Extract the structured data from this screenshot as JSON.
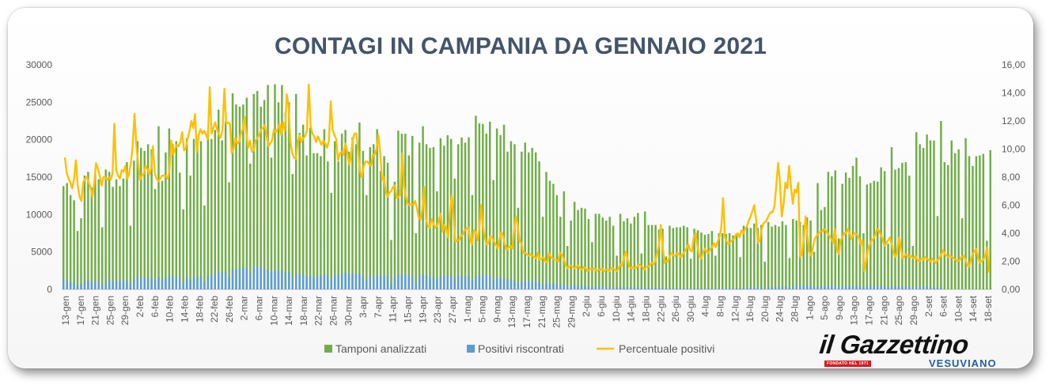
{
  "chart_data": {
    "type": "bar+line",
    "title": "CONTAGI IN CAMPANIA DA GENNAIO 2021",
    "y_left": {
      "min": 0,
      "max": 30000,
      "ticks": [
        "0",
        "5000",
        "10000",
        "15000",
        "20000",
        "25000",
        "30000"
      ]
    },
    "y_right": {
      "min": 0,
      "max": 16,
      "ticks": [
        "0,00",
        "2,00",
        "4,00",
        "6,00",
        "8,00",
        "10,00",
        "12,00",
        "14,00",
        "16,00"
      ]
    },
    "x_tick_labels": [
      "13-gen",
      "17-gen",
      "21-gen",
      "25-gen",
      "29-gen",
      "2-feb",
      "6-feb",
      "10-feb",
      "14-feb",
      "18-feb",
      "22-feb",
      "26-feb",
      "2-mar",
      "6-mar",
      "10-mar",
      "14-mar",
      "18-mar",
      "22-mar",
      "26-mar",
      "30-mar",
      "3-apr",
      "7-apr",
      "11-apr",
      "15-apr",
      "19-apr",
      "23-apr",
      "27-apr",
      "1-mag",
      "5-mag",
      "9-mag",
      "13-mag",
      "17-mag",
      "21-mag",
      "25-mag",
      "29-mag",
      "2-giu",
      "6-giu",
      "10-giu",
      "14-giu",
      "18-giu",
      "22-giu",
      "26-giu",
      "30-giu",
      "4-lug",
      "8-lug",
      "12-lug",
      "16-lug",
      "20-lug",
      "24-lug",
      "28-lug",
      "1-ago",
      "5-ago",
      "9-ago",
      "13-ago",
      "17-ago",
      "21-ago",
      "25-ago",
      "29-ago",
      "2-set",
      "6-set",
      "10-set",
      "14-set",
      "18-set"
    ],
    "legend": [
      "Tamponi analizzati",
      "Positivi riscontrati",
      "Percentuale positivi"
    ],
    "legend_position": "bottom",
    "colors": {
      "tamponi": "#70ad47",
      "positivi": "#5b9bd5",
      "percentuale": "#ffc000"
    },
    "series": [
      {
        "name": "Tamponi analizzati",
        "axis": "left",
        "type": "bar",
        "values": [
          13800,
          14200,
          12600,
          11900,
          7800,
          9500,
          15200,
          15700,
          13600,
          15400,
          14700,
          8300,
          16000,
          15700,
          13700,
          14700,
          13800,
          14800,
          17000,
          8500,
          17200,
          19800,
          18900,
          18500,
          19400,
          18700,
          13400,
          21800,
          14500,
          18300,
          21500,
          19400,
          19800,
          15600,
          10700,
          20200,
          15200,
          20100,
          19700,
          19800,
          11200,
          21200,
          20100,
          21300,
          24000,
          19900,
          22400,
          14300,
          26200,
          24700,
          24400,
          24700,
          25600,
          16800,
          26100,
          26500,
          24400,
          25300,
          27300,
          17600,
          27400,
          25000,
          27300,
          23600,
          25000,
          15400,
          26100,
          20900,
          22000,
          17900,
          21600,
          18200,
          18200,
          17800,
          21400,
          17100,
          12900,
          19800,
          17100,
          20800,
          21300,
          18400,
          20300,
          19400,
          22300,
          18500,
          12600,
          19000,
          19400,
          21400,
          15800,
          17800,
          16900,
          6600,
          14400,
          21200,
          20800,
          20800,
          17900,
          20500,
          7500,
          19600,
          21800,
          19400,
          18900,
          19000,
          13100,
          20200,
          19200,
          20600,
          20100,
          14800,
          19400,
          20300,
          19600,
          20300,
          12600,
          23200,
          22200,
          22100,
          20800,
          22400,
          14600,
          21500,
          20600,
          22000,
          18400,
          19800,
          19400,
          10900,
          18400,
          19600,
          18300,
          18900,
          18300,
          17100,
          9700,
          15700,
          14500,
          14100,
          12600,
          9700,
          13100,
          5800,
          9200,
          11700,
          10600,
          10900,
          10800,
          9400,
          6300,
          10100,
          10100,
          9600,
          9200,
          9700,
          8500,
          4500,
          10100,
          9100,
          9500,
          8800,
          9700,
          10200,
          4800,
          10400,
          8600,
          8600,
          8600,
          8000,
          8100,
          4400,
          8500,
          8200,
          8300,
          8300,
          8500,
          8300,
          4100,
          8100,
          7900,
          7600,
          7300,
          7400,
          7800,
          4500,
          7500,
          7500,
          7400,
          7500,
          7200,
          7400,
          4300,
          8500,
          8300,
          8200,
          8800,
          8200,
          8600,
          3700,
          9000,
          8400,
          8600,
          8400,
          9100,
          8600,
          4200,
          9400,
          9200,
          9000,
          8600,
          9600,
          9200,
          5000,
          14200,
          10600,
          11000,
          15700,
          15100,
          15900,
          6800,
          14100,
          15600,
          14900,
          16500,
          17600,
          15100,
          7500,
          14000,
          14200,
          14500,
          14400,
          16300,
          15800,
          6100,
          19000,
          16000,
          16200,
          16900,
          17000,
          15200,
          5800,
          21000,
          19400,
          18900,
          20700,
          19900,
          19900,
          9800,
          22500,
          17000,
          16600,
          19900,
          18200,
          18700,
          9500,
          20200,
          17800,
          16500,
          17800,
          17900,
          18100,
          6500,
          18600
        ]
      },
      {
        "name": "Positivi riscontrati",
        "axis": "left",
        "type": "bar",
        "values": [
          1300,
          1200,
          1000,
          900,
          600,
          700,
          1100,
          1200,
          1000,
          1100,
          1000,
          600,
          1000,
          1200,
          1100,
          1200,
          1100,
          1200,
          1300,
          700,
          1400,
          1600,
          1600,
          1500,
          1600,
          1500,
          1200,
          1700,
          1300,
          1600,
          1800,
          1600,
          1700,
          1300,
          900,
          1600,
          1300,
          1600,
          1600,
          1700,
          1000,
          1800,
          1900,
          2100,
          2400,
          2300,
          2300,
          1600,
          2600,
          2700,
          2800,
          2800,
          2900,
          2100,
          3000,
          3000,
          2900,
          2700,
          2600,
          2300,
          2500,
          2400,
          2500,
          2200,
          2300,
          1500,
          2200,
          1900,
          2000,
          1700,
          1900,
          1600,
          1700,
          1800,
          2000,
          1800,
          1400,
          1900,
          1900,
          2200,
          2200,
          2100,
          2100,
          2000,
          2100,
          1800,
          1300,
          1800,
          1700,
          1900,
          1800,
          1800,
          1900,
          800,
          1600,
          2000,
          2000,
          1900,
          1900,
          1800,
          900,
          1800,
          2000,
          1800,
          1700,
          1700,
          1400,
          1700,
          1800,
          1800,
          1800,
          1500,
          1800,
          1800,
          1700,
          1800,
          1200,
          1700,
          1800,
          1900,
          1900,
          1900,
          1300,
          1600,
          1500,
          1500,
          1300,
          1300,
          1200,
          800,
          1100,
          1200,
          1100,
          1100,
          1100,
          1000,
          600,
          900,
          800,
          800,
          700,
          600,
          700,
          400,
          500,
          600,
          500,
          500,
          500,
          400,
          300,
          400,
          400,
          350,
          300,
          330,
          300,
          200,
          350,
          300,
          300,
          280,
          280,
          300,
          150,
          250,
          250,
          230,
          200,
          180,
          190,
          120,
          170,
          160,
          150,
          150,
          150,
          140,
          80,
          130,
          140,
          120,
          120,
          130,
          120,
          90,
          130,
          140,
          150,
          150,
          160,
          170,
          90,
          230,
          230,
          240,
          260,
          260,
          270,
          140,
          320,
          330,
          340,
          350,
          380,
          400,
          250,
          480,
          500,
          500,
          480,
          520,
          480,
          350,
          400,
          420,
          430,
          450,
          480,
          450,
          300,
          430,
          440,
          420,
          430,
          450,
          440,
          270,
          460,
          450,
          460,
          470,
          440,
          430,
          260,
          420,
          410,
          400,
          410,
          400,
          380,
          260,
          380,
          370,
          360,
          370,
          350,
          340,
          200,
          330
        ]
      },
      {
        "name": "Percentuale positivi",
        "axis": "right",
        "type": "line",
        "values": [
          9.4,
          8.3,
          7.9,
          7.6,
          7.2,
          7.9,
          9.2,
          7.4,
          6.6,
          6.3,
          7.6,
          7.9,
          8.0,
          7.6,
          7.3,
          6.6,
          7.5,
          9.0,
          8.6,
          8.1,
          7.4,
          8.0,
          8.0,
          7.8,
          8.0,
          7.8,
          8.3,
          11.8,
          8.5,
          8.1,
          7.9,
          8.5,
          8.4,
          8.8,
          7.9,
          8.2,
          9.0,
          10.3,
          12.5,
          10.2,
          9.0,
          7.8,
          8.1,
          8.2,
          8.8,
          8.6,
          8.2,
          8.6,
          10.2,
          8.3,
          7.9,
          7.7,
          7.9,
          8.1,
          8.1,
          8.1,
          7.9,
          8.4,
          10.6,
          9.6,
          10.0,
          10.3,
          10.2,
          10.5,
          11.2,
          9.9,
          10.1,
          10.8,
          11.3,
          12.0,
          11.5,
          12.5,
          9.8,
          11.0,
          11.4,
          11.1,
          11.3,
          11.0,
          10.7,
          14.4,
          11.1,
          11.5,
          11.9,
          11.4,
          11.0,
          10.8,
          11.4,
          14.3,
          11.8,
          11.9,
          11.8,
          9.7,
          10.0,
          10.8,
          10.4,
          10.5,
          11.1,
          11.4,
          12.3,
          11.1,
          10.1,
          10.6,
          9.8,
          9.9,
          10.6,
          10.8,
          11.0,
          11.4,
          11.5,
          11.7,
          11.0,
          10.2,
          10.4,
          10.6,
          11.4,
          11.2,
          11.4,
          11.8,
          11.0,
          11.9,
          11.3,
          13.9,
          13.0,
          10.5,
          9.7,
          9.4,
          9.3,
          10.5,
          11.0,
          10.5,
          10.8,
          10.9,
          11.3,
          14.6,
          11.7,
          11.1,
          10.9,
          10.5,
          10.9,
          10.6,
          10.3,
          10.6,
          10.4,
          10.1,
          10.6,
          13.4,
          11.4,
          11.0,
          10.7,
          9.2,
          9.7,
          9.8,
          9.6,
          10.4,
          9.8,
          8.9,
          9.4,
          10.7,
          11.1,
          11.1,
          9.8,
          8.4,
          8.0,
          8.8,
          9.1,
          9.1,
          8.9,
          8.8,
          9.6,
          9.6,
          10.0,
          11.0,
          9.7,
          7.8,
          8.0,
          7.0,
          6.6,
          6.9,
          7.0,
          7.3,
          7.4,
          6.5,
          6.6,
          6.8,
          9.7,
          7.4,
          6.6,
          6.1,
          6.0,
          6.1,
          6.0,
          6.3,
          5.8,
          5.1,
          5.0,
          5.7,
          7.3,
          5.0,
          4.5,
          4.4,
          5.0,
          4.7,
          4.4,
          4.5,
          4.9,
          5.4,
          4.1,
          4.6,
          4.3,
          3.7,
          5.4,
          6.7,
          5.2,
          3.4,
          3.5,
          3.5,
          3.8,
          3.9,
          4.2,
          4.3,
          4.4,
          3.6,
          3.2,
          4.2,
          4.1,
          3.5,
          4.3,
          6.0,
          4.5,
          3.7,
          3.2,
          3.3,
          3.8,
          3.7,
          3.4,
          3.2,
          2.9,
          3.5,
          4.1,
          3.8,
          3.2,
          2.8,
          3.0,
          3.1,
          2.9,
          4.2,
          5.2,
          4.6,
          3.4,
          3.3,
          2.6,
          2.6,
          2.5,
          2.4,
          2.5,
          2.4,
          2.3,
          2.2,
          2.6,
          2.1,
          2.2,
          2.3,
          2.0,
          1.9,
          2.6,
          2.3,
          2.2,
          2.1,
          2.1,
          2.0,
          2.6,
          2.5,
          2.2,
          1.8,
          1.5,
          1.6,
          1.7,
          1.6,
          1.5,
          1.6,
          1.7,
          1.5,
          1.4,
          1.6,
          1.5,
          1.3,
          1.4,
          1.5,
          1.4,
          1.5,
          1.3,
          1.4,
          1.4,
          1.5,
          1.3,
          1.4,
          1.4,
          1.3,
          1.5,
          1.5,
          1.4,
          1.3,
          1.5,
          1.8,
          1.7,
          2.3,
          2.7,
          2.1,
          1.6,
          1.5,
          1.6,
          1.5,
          1.6,
          1.8,
          1.7,
          1.6,
          1.4,
          1.6,
          1.6,
          1.7,
          1.9,
          1.8,
          2.0,
          2.6,
          3.1,
          4.6,
          3.1,
          1.9,
          2.0,
          2.0,
          2.4,
          2.6,
          2.4,
          2.4,
          2.6,
          2.5,
          2.3,
          2.5,
          2.7,
          2.9,
          3.2,
          2.8,
          2.7,
          3.7,
          4.0,
          3.1,
          2.4,
          2.2,
          2.6,
          2.9,
          2.7,
          2.6,
          2.9,
          3.0,
          3.3,
          3.0,
          3.4,
          3.7,
          4.4,
          6.5,
          3.7,
          3.4,
          3.2,
          3.4,
          3.5,
          3.6,
          3.9,
          4.0,
          3.7,
          4.2,
          4.0,
          4.3,
          4.5,
          4.9,
          5.2,
          5.6,
          6.0,
          5.0,
          3.3,
          3.5,
          4.3,
          4.7,
          4.8,
          5.0,
          5.3,
          5.5,
          5.5,
          5.9,
          7.4,
          9.0,
          7.6,
          5.2,
          6.1,
          7.6,
          7.2,
          8.8,
          7.4,
          6.1,
          7.1,
          6.9,
          7.6,
          2.3,
          2.5,
          3.6,
          5.2,
          3.8,
          2.7,
          2.4,
          3.0,
          3.6,
          3.8,
          4.0,
          4.1,
          4.1,
          4.3,
          4.2,
          4.0,
          3.8,
          3.6,
          3.3,
          4.3,
          2.9,
          2.5,
          3.4,
          3.7,
          4.0,
          4.0,
          4.3,
          4.0,
          3.6,
          3.9,
          4.0,
          3.9,
          3.7,
          3.2,
          3.5,
          1.3,
          2.0,
          2.8,
          3.2,
          3.5,
          3.6,
          3.9,
          4.3,
          4.2,
          3.9,
          3.6,
          3.1,
          3.3,
          3.5,
          3.7,
          3.2,
          2.6,
          2.3,
          2.8,
          3.7,
          2.9,
          2.2,
          2.4,
          2.5,
          2.3,
          2.4,
          2.3,
          2.2,
          2.4,
          2.1,
          2.0,
          2.2,
          2.1,
          2.3,
          2.2,
          2.1,
          2.0,
          2.2,
          2.0,
          1.9,
          2.1,
          2.2,
          2.5,
          2.8,
          2.5,
          2.4,
          2.3,
          2.4,
          2.3,
          2.2,
          2.1,
          2.0,
          2.1,
          2.3,
          2.4,
          2.2,
          1.8,
          1.6,
          2.0,
          2.5,
          2.7,
          2.9,
          2.3,
          1.9,
          2.0,
          2.1,
          2.4,
          3.0,
          1.2
        ]
      }
    ]
  },
  "logo": {
    "main": "il Gazzettino",
    "tag": "FONDATO NEL 1971",
    "sub": "VESUVIANO"
  }
}
